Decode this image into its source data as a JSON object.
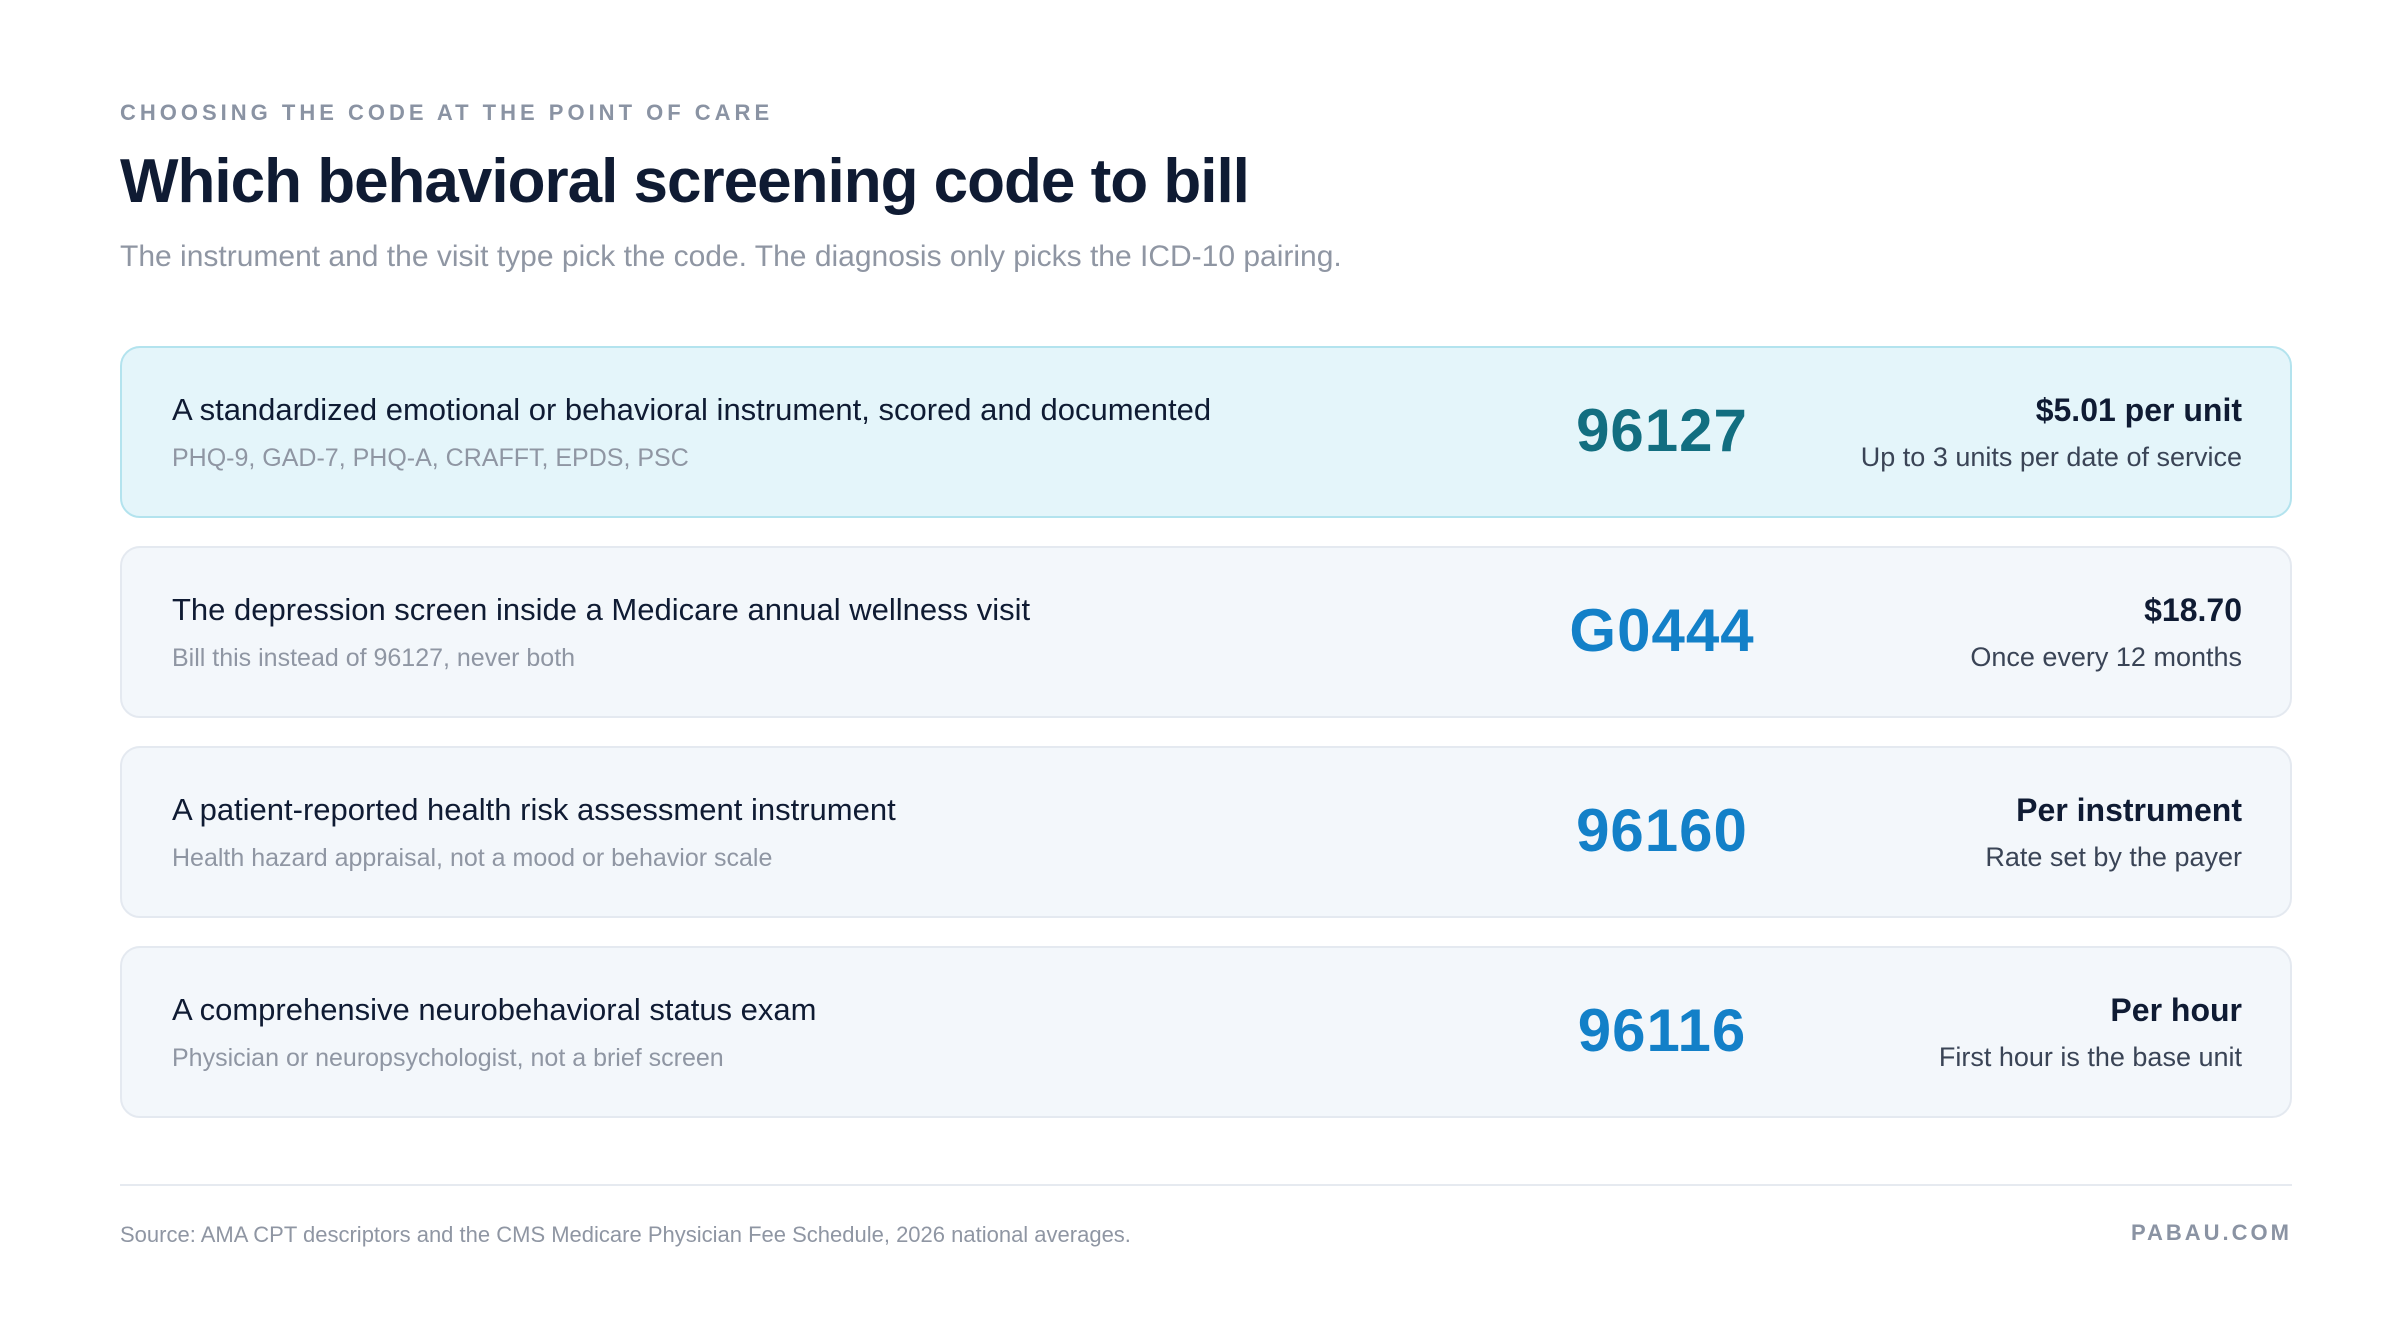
{
  "header": {
    "eyebrow": "CHOOSING THE CODE AT THE POINT OF CARE",
    "title": "Which behavioral screening code to bill",
    "subtitle": "The instrument and the visit type pick the code. The diagnosis only picks the ICD-10 pairing."
  },
  "rows": [
    {
      "description": "A standardized emotional or behavioral instrument, scored and documented",
      "note": "PHQ-9, GAD-7, PHQ-A, CRAFFT, EPDS, PSC",
      "code": "96127",
      "rate": "$5.01 per unit",
      "rate_note": "Up to 3 units per date of service",
      "highlighted": true
    },
    {
      "description": "The depression screen inside a Medicare annual wellness visit",
      "note": "Bill this instead of 96127, never both",
      "code": "G0444",
      "rate": "$18.70",
      "rate_note": "Once every 12 months",
      "highlighted": false
    },
    {
      "description": "A patient-reported health risk assessment instrument",
      "note": "Health hazard appraisal, not a mood or behavior scale",
      "code": "96160",
      "rate": "Per instrument",
      "rate_note": "Rate set by the payer",
      "highlighted": false
    },
    {
      "description": "A comprehensive neurobehavioral status exam",
      "note": "Physician or neuropsychologist, not a brief screen",
      "code": "96116",
      "rate": "Per hour",
      "rate_note": "First hour is the base unit",
      "highlighted": false
    }
  ],
  "footer": {
    "source": "Source: AMA CPT descriptors and the CMS Medicare Physician Fee Schedule, 2026 national averages.",
    "brand": "PABAU.COM"
  },
  "colors": {
    "highlight_bg": "#e4f5fa",
    "highlight_code": "#126e80",
    "code_blue": "#1380c8",
    "row_bg": "#f3f7fb"
  }
}
